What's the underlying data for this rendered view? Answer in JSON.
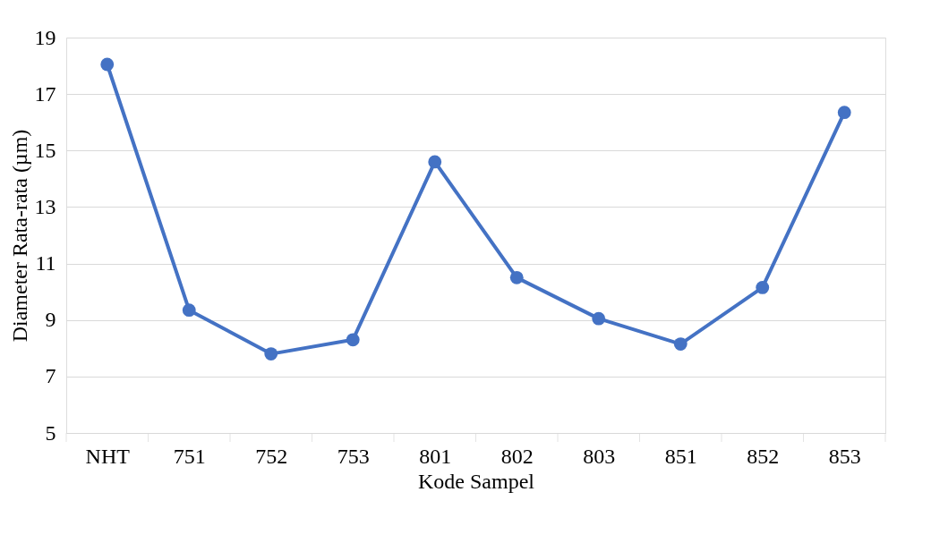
{
  "chart_data": {
    "type": "line",
    "xlabel": "Kode Sampel",
    "ylabel": "Diameter Rata-rata (µm)",
    "categories": [
      "NHT",
      "751",
      "752",
      "753",
      "801",
      "802",
      "803",
      "851",
      "852",
      "853"
    ],
    "series": [
      {
        "color": "#4472c4",
        "values": [
          18.05,
          9.35,
          7.8,
          8.3,
          14.6,
          10.5,
          9.05,
          8.15,
          10.15,
          16.35
        ]
      }
    ],
    "ylim": [
      5,
      19
    ],
    "yticks": [
      5,
      7,
      9,
      11,
      13,
      15,
      17,
      19
    ],
    "grid": "y",
    "marker": "circle",
    "line_style": "solid",
    "legend": false
  }
}
